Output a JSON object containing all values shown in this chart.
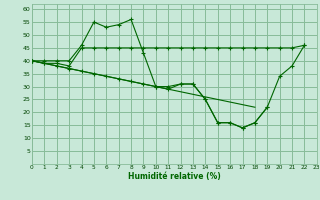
{
  "xlabel": "Humidité relative (%)",
  "bg_color": "#c8e8d8",
  "grid_color": "#88bb99",
  "line_color": "#006600",
  "xlim": [
    0,
    23
  ],
  "ylim": [
    0,
    62
  ],
  "yticks": [
    5,
    10,
    15,
    20,
    25,
    30,
    35,
    40,
    45,
    50,
    55,
    60
  ],
  "xticks": [
    0,
    1,
    2,
    3,
    4,
    5,
    6,
    7,
    8,
    9,
    10,
    11,
    12,
    13,
    14,
    15,
    16,
    17,
    18,
    19,
    20,
    21,
    22,
    23
  ],
  "s1_x": [
    0,
    1,
    2,
    3,
    4,
    5,
    6,
    7,
    8,
    9,
    10,
    11,
    12,
    13,
    14,
    15,
    16,
    17,
    18,
    19,
    20,
    21,
    22
  ],
  "s1_y": [
    40,
    40,
    40,
    40,
    46,
    55,
    53,
    54,
    56,
    43,
    30,
    29,
    31,
    31,
    25,
    16,
    16,
    14,
    16,
    22,
    34,
    38,
    46
  ],
  "s2_x": [
    0,
    1,
    2,
    3,
    4,
    5,
    6,
    7,
    8,
    9,
    10,
    11,
    12,
    13,
    14,
    15,
    16,
    17,
    18,
    19,
    20,
    21,
    22
  ],
  "s2_y": [
    40,
    39,
    39,
    38,
    45,
    45,
    45,
    45,
    45,
    45,
    45,
    45,
    45,
    45,
    45,
    45,
    45,
    45,
    45,
    45,
    45,
    45,
    46
  ],
  "s3_x": [
    0,
    1,
    2,
    3,
    4,
    5,
    6,
    7,
    8,
    9,
    10,
    11,
    12,
    13,
    14,
    15,
    16,
    17,
    18,
    19
  ],
  "s3_y": [
    40,
    39,
    38,
    37,
    36,
    35,
    34,
    33,
    32,
    31,
    30,
    30,
    31,
    31,
    25,
    16,
    16,
    14,
    16,
    22
  ],
  "s4_x": [
    0,
    1,
    2,
    3,
    4,
    5,
    6,
    7,
    8,
    9,
    10,
    11,
    12,
    13,
    14,
    15,
    16,
    17,
    18
  ],
  "s4_y": [
    40,
    39,
    38,
    37,
    36,
    35,
    34,
    33,
    32,
    31,
    30,
    29,
    28,
    27,
    26,
    25,
    24,
    23,
    22
  ]
}
